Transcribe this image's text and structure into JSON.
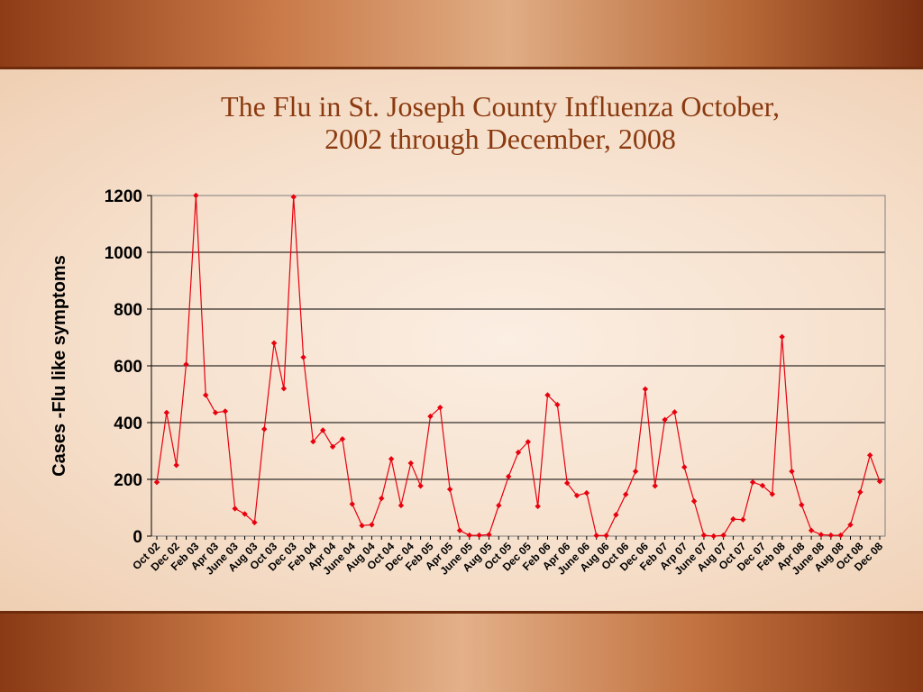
{
  "slide": {
    "title_line1": "The Flu in St. Joseph County Influenza October,",
    "title_line2": "2002 through December, 2008"
  },
  "chart_data": {
    "type": "line",
    "title": "The Flu in St. Joseph County Influenza October, 2002 through December, 2008",
    "xlabel": "",
    "ylabel": "Cases -Flu like symptoms",
    "ylim": [
      0,
      1200
    ],
    "yticks": [
      0,
      200,
      400,
      600,
      800,
      1000,
      1200
    ],
    "grid": true,
    "legend": "none",
    "line_color": "#e8000f",
    "x_tick_labels": [
      "Oct 02",
      "Dec 02",
      "Feb 03",
      "Apr 03",
      "June 03",
      "Aug 03",
      "Oct 03",
      "Dec 03",
      "Feb 04",
      "Apr 04",
      "June 04",
      "Aug 04",
      "Oct 04",
      "Dec 04",
      "Feb 05",
      "Apr 05",
      "June 05",
      "Aug 05",
      "Oct 05",
      "Dec 05",
      "Feb 06",
      "Apr 06",
      "June 06",
      "Aug 06",
      "Oct 06",
      "Dec 06",
      "Feb 07",
      "Arp 07",
      "June 07",
      "Aug 07",
      "Oct 07",
      "Dec 07",
      "Feb 08",
      "Apr 08",
      "June 08",
      "Aug 08",
      "Oct 08",
      "Dec 08"
    ],
    "values": [
      190,
      435,
      250,
      605,
      1215,
      497,
      435,
      440,
      97,
      78,
      48,
      377,
      680,
      520,
      1195,
      630,
      333,
      373,
      315,
      342,
      113,
      37,
      40,
      133,
      272,
      108,
      257,
      177,
      422,
      453,
      165,
      20,
      3,
      3,
      5,
      108,
      210,
      295,
      332,
      105,
      497,
      463,
      187,
      143,
      152,
      2,
      2,
      75,
      147,
      228,
      518,
      177,
      410,
      437,
      243,
      123,
      3,
      0,
      3,
      60,
      58,
      190,
      178,
      148,
      702,
      228,
      110,
      20,
      5,
      3,
      3,
      40,
      155,
      285,
      193
    ]
  }
}
